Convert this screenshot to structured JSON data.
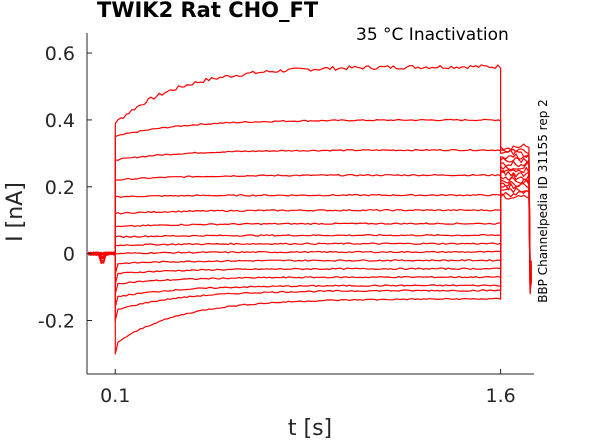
{
  "chart_data": {
    "type": "line",
    "title": "TWIK2  Rat  CHO_FT",
    "subtitle": "35 °C  Inactivation",
    "side_label": "BBP Channelpedia ID 31155 rep 2",
    "xlabel": "t [s]",
    "ylabel": "I [nA]",
    "xlim": [
      -0.01,
      1.73
    ],
    "ylim": [
      -0.36,
      0.66
    ],
    "xticks": [
      0.1,
      1.6
    ],
    "xtick_labels": [
      "0.1",
      "1.6"
    ],
    "yticks": [
      -0.2,
      0,
      0.2,
      0.4,
      0.6
    ],
    "ytick_labels": [
      "-0.2",
      "0",
      "0.2",
      "0.4",
      "0.6"
    ],
    "grid": false,
    "legend": "none",
    "color": "#ff0000",
    "pulse_start": 0.1,
    "pulse_end": 1.6,
    "baseline": 0.0,
    "series": [
      {
        "onset": 0.39,
        "steady": 0.56,
        "tail": 0.32
      },
      {
        "onset": 0.35,
        "steady": 0.4,
        "tail": 0.31
      },
      {
        "onset": 0.28,
        "steady": 0.31,
        "tail": 0.3
      },
      {
        "onset": 0.22,
        "steady": 0.235,
        "tail": 0.29
      },
      {
        "onset": 0.17,
        "steady": 0.175,
        "tail": 0.28
      },
      {
        "onset": 0.12,
        "steady": 0.13,
        "tail": 0.27
      },
      {
        "onset": 0.08,
        "steady": 0.09,
        "tail": 0.26
      },
      {
        "onset": 0.05,
        "steady": 0.055,
        "tail": 0.25
      },
      {
        "onset": 0.025,
        "steady": 0.03,
        "tail": 0.24
      },
      {
        "onset": 0.0,
        "steady": 0.005,
        "tail": 0.23
      },
      {
        "onset": -0.03,
        "steady": -0.02,
        "tail": 0.22
      },
      {
        "onset": -0.06,
        "steady": -0.045,
        "tail": 0.21
      },
      {
        "onset": -0.09,
        "steady": -0.07,
        "tail": 0.2
      },
      {
        "onset": -0.13,
        "steady": -0.095,
        "tail": 0.19
      },
      {
        "onset": -0.17,
        "steady": -0.11,
        "tail": 0.18
      },
      {
        "onset": -0.27,
        "steady": -0.135,
        "tail": 0.17
      }
    ]
  }
}
